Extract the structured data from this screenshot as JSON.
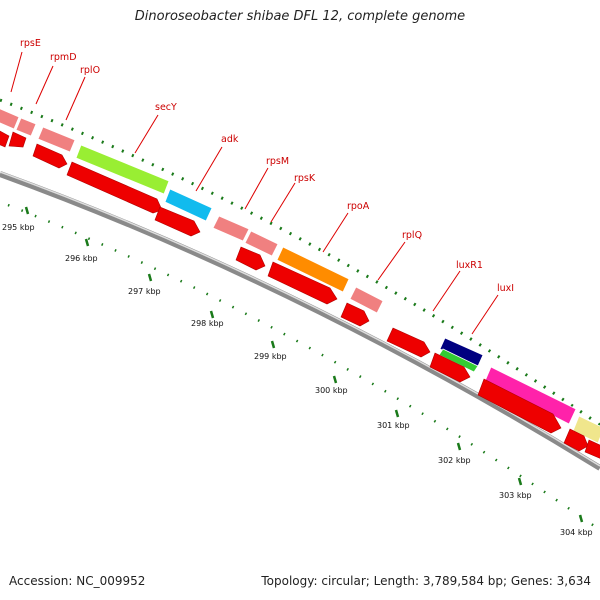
{
  "title": "Dinoroseobacter shibae DFL 12, complete genome",
  "footer": {
    "accession": "Accession: NC_009952",
    "topology": "Topology: circular; Length: 3,789,584 bp; Genes: 3,634"
  },
  "colors": {
    "backbone": "#8a8a8a",
    "cds_arrow": "#ee0000",
    "label_red": "#cc0000",
    "tick_green": "#1a7a1a"
  },
  "kbp_labels": [
    "295 kbp",
    "296 kbp",
    "297 kbp",
    "298 kbp",
    "299 kbp",
    "300 kbp",
    "301 kbp",
    "302 kbp",
    "303 kbp",
    "304 kbp"
  ],
  "genes": [
    {
      "name": "rpsE",
      "color": "#f08080"
    },
    {
      "name": "rpmD",
      "color": "#f08080"
    },
    {
      "name": "rplO",
      "color": "#f08080"
    },
    {
      "name": "secY",
      "color": "#99ee33"
    },
    {
      "name": "adk",
      "color": "#11bbee"
    },
    {
      "name": "rpsM",
      "color": "#f08080"
    },
    {
      "name": "rpsK",
      "color": "#f08080"
    },
    {
      "name": "rpoA",
      "color": "#ff8c00"
    },
    {
      "name": "rplQ",
      "color": "#f08080"
    },
    {
      "name": "luxR1",
      "color": "#000080"
    },
    {
      "name": "luxI",
      "color": "#33cc33"
    }
  ]
}
